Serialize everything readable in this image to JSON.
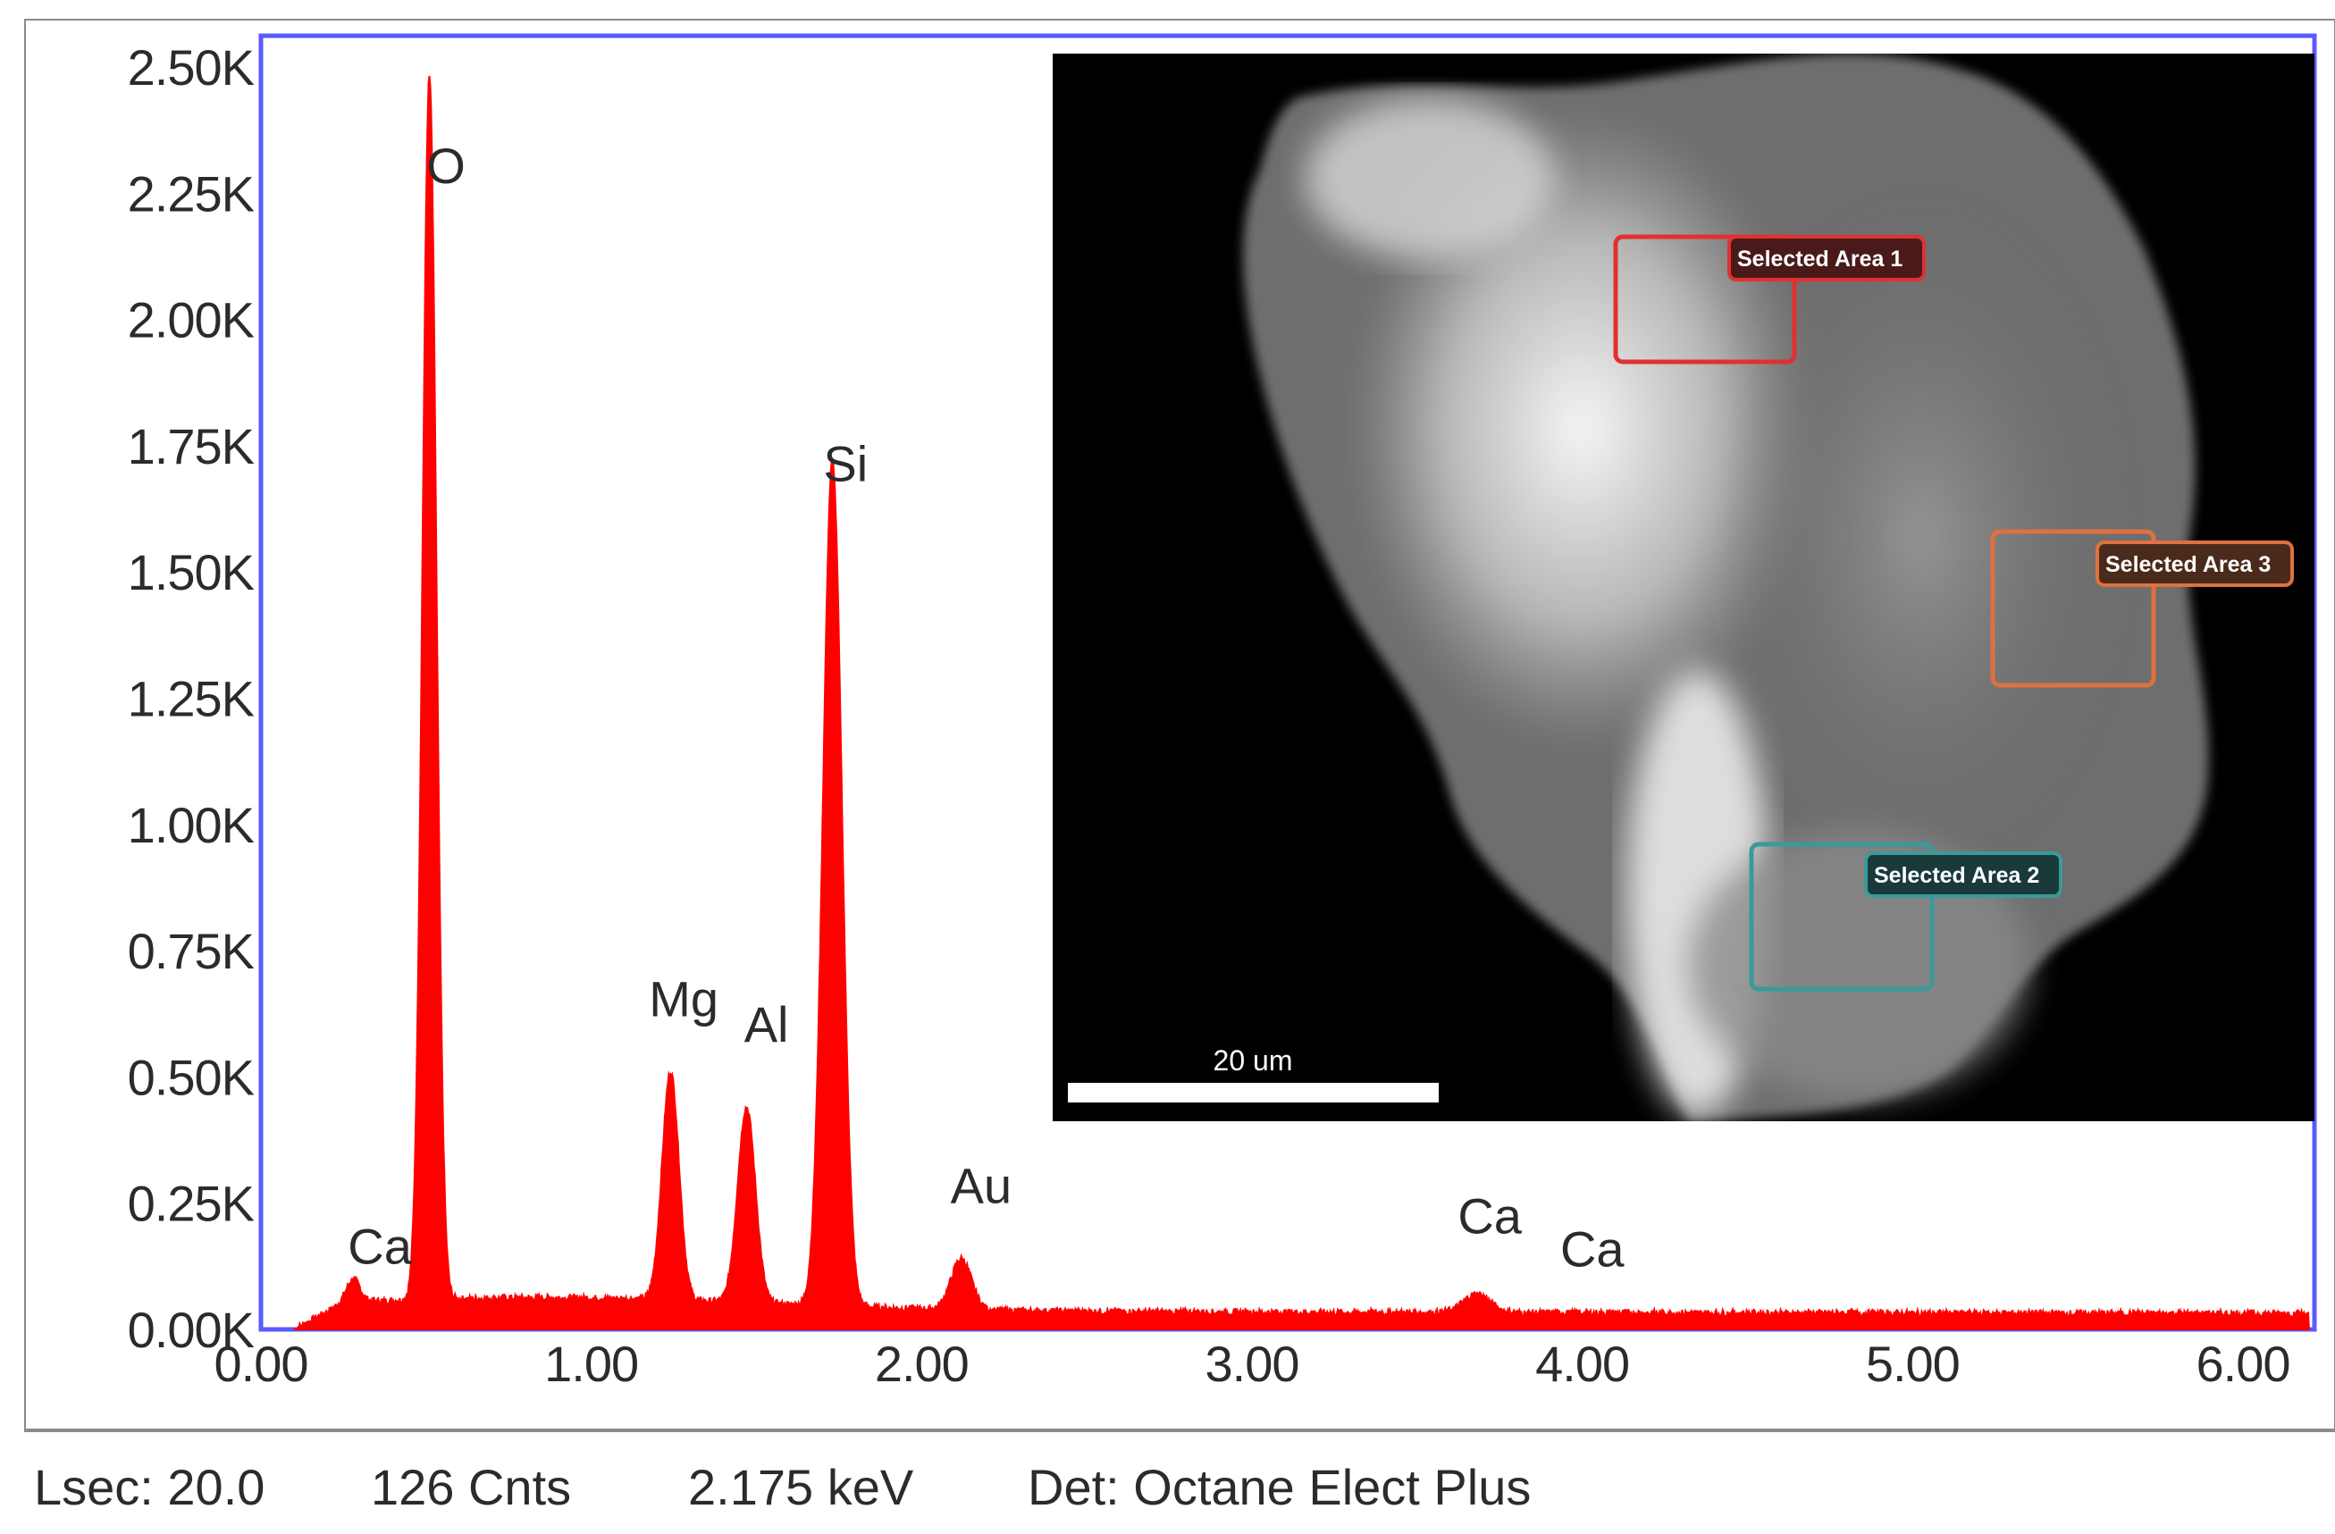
{
  "chart_data": {
    "type": "area",
    "x_ticks": [
      "0.00",
      "1.00",
      "2.00",
      "3.00",
      "4.00",
      "5.00",
      "6.00"
    ],
    "y_ticks": [
      "0.00K",
      "0.25K",
      "0.50K",
      "0.75K",
      "1.00K",
      "1.25K",
      "1.50K",
      "1.75K",
      "2.00K",
      "2.25K",
      "2.50K"
    ],
    "xlim": [
      0,
      6.2
    ],
    "ylim": [
      0,
      2500
    ],
    "fill_color": "#ff0000",
    "frame_color": "#5a5aff",
    "peaks": [
      {
        "element": "Ca",
        "energy": 0.28,
        "counts": 100
      },
      {
        "element": "O",
        "energy": 0.51,
        "counts": 2480
      },
      {
        "element": "Mg",
        "energy": 1.24,
        "counts": 510
      },
      {
        "element": "Al",
        "energy": 1.47,
        "counts": 440
      },
      {
        "element": "Si",
        "energy": 1.73,
        "counts": 1720
      },
      {
        "element": "Au",
        "energy": 2.12,
        "counts": 140
      },
      {
        "element": "Ca",
        "energy": 3.68,
        "counts": 70
      },
      {
        "element": "Ca",
        "energy": 4.01,
        "counts": 15
      }
    ],
    "peak_labels": [
      {
        "text": "Ca",
        "energy": 0.36,
        "counts": 130
      },
      {
        "text": "O",
        "energy": 0.56,
        "counts": 2270
      },
      {
        "text": "Mg",
        "energy": 1.28,
        "counts": 620
      },
      {
        "text": "Al",
        "energy": 1.53,
        "counts": 570
      },
      {
        "text": "Si",
        "energy": 1.77,
        "counts": 1680
      },
      {
        "text": "Au",
        "energy": 2.18,
        "counts": 250
      },
      {
        "text": "Ca",
        "energy": 3.72,
        "counts": 190
      },
      {
        "text": "Ca",
        "energy": 4.03,
        "counts": 125
      }
    ]
  },
  "inset": {
    "areas": [
      {
        "label": "Selected Area 1",
        "color": "#e23030"
      },
      {
        "label": "Selected Area 2",
        "color": "#3a9a9a"
      },
      {
        "label": "Selected Area 3",
        "color": "#e07040"
      }
    ],
    "scale_bar": "20 um"
  },
  "status": {
    "lsec": "Lsec: 20.0",
    "counts": "126 Cnts",
    "energy": "2.175 keV",
    "detector": "Det: Octane Elect Plus"
  }
}
